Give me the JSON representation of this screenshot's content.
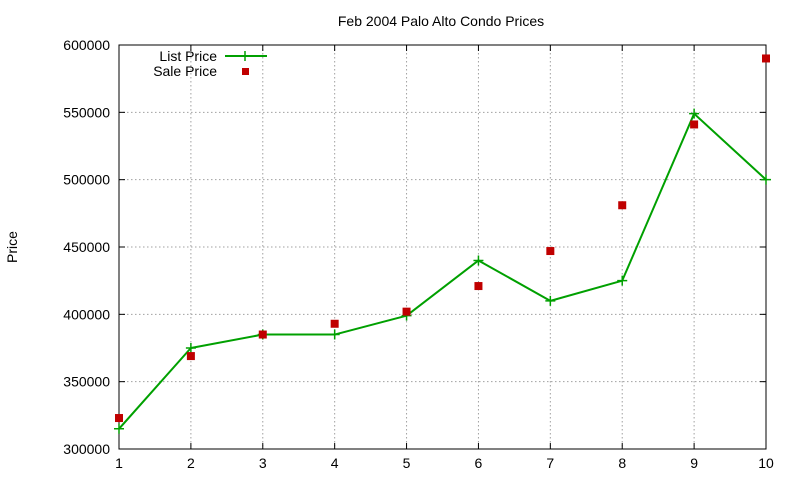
{
  "chart_data": {
    "type": "line",
    "title": "Feb 2004 Palo Alto Condo Prices",
    "xlabel": "",
    "ylabel": "Price",
    "xlim": [
      1,
      10
    ],
    "ylim": [
      300000,
      600000
    ],
    "x_ticks": [
      1,
      2,
      3,
      4,
      5,
      6,
      7,
      8,
      9,
      10
    ],
    "y_ticks": [
      300000,
      350000,
      400000,
      450000,
      500000,
      550000,
      600000
    ],
    "grid": true,
    "legend_position": "top-left",
    "series": [
      {
        "name": "List Price",
        "style": "line-with-plus-markers",
        "color": "#00a000",
        "x": [
          1,
          2,
          3,
          4,
          5,
          6,
          7,
          8,
          9,
          10
        ],
        "y": [
          315000,
          375000,
          385000,
          385000,
          399000,
          440000,
          410000,
          425000,
          549000,
          500000
        ]
      },
      {
        "name": "Sale Price",
        "style": "square-markers",
        "color": "#c00000",
        "x": [
          1,
          2,
          3,
          4,
          5,
          6,
          7,
          8,
          9,
          10
        ],
        "y": [
          323000,
          369000,
          385000,
          393000,
          402000,
          421000,
          447000,
          481000,
          541000,
          590000
        ]
      }
    ]
  }
}
